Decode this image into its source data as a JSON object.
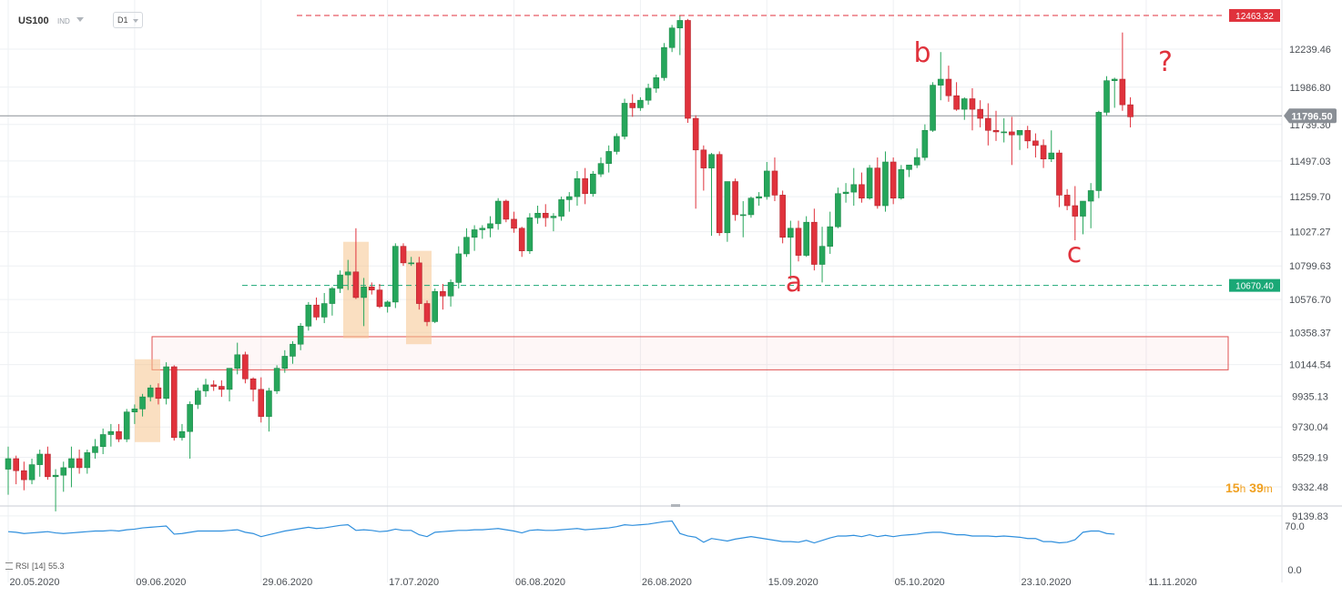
{
  "header": {
    "symbol": "US100",
    "market": "IND",
    "timeframe": "D1"
  },
  "timer": {
    "h": "15",
    "h_unit": "h",
    "m": "39",
    "m_unit": "m"
  },
  "rsi": {
    "label": "RSI",
    "period": "[14]",
    "value": "55.3"
  },
  "colors": {
    "up": "#26a65b",
    "down": "#e0323c",
    "rsi": "#2f8fdd",
    "highlight": "#f6c58e",
    "zone": "#e05050"
  },
  "chart_data": {
    "type": "candlestick",
    "symbol": "US100",
    "timeframe": "D1",
    "ylim": [
      9050,
      12600
    ],
    "y_ticks": [
      "12239.46",
      "11986.80",
      "11739.30",
      "11497.03",
      "11259.70",
      "11027.27",
      "10799.63",
      "10576.70",
      "10358.37",
      "10144.54",
      "9935.13",
      "9730.04",
      "9529.19",
      "9332.48",
      "9139.83"
    ],
    "x_ticks": [
      "20.05.2020",
      "09.06.2020",
      "29.06.2020",
      "17.07.2020",
      "06.08.2020",
      "26.08.2020",
      "15.09.2020",
      "05.10.2020",
      "23.10.2020",
      "11.11.2020"
    ],
    "current_price": "11796.50",
    "levels": [
      {
        "label": "12463.32",
        "value": 12463.32,
        "style": "dashed",
        "color": "#e0323c"
      },
      {
        "label": "10670.40",
        "value": 10670.4,
        "style": "dashed",
        "color": "#1aa876"
      }
    ],
    "annotations": [
      "a",
      "b",
      "c",
      "?"
    ],
    "rsi_ticks": [
      "70.0",
      "0.0"
    ],
    "candles": [
      [
        9450,
        9600,
        9280,
        9520
      ],
      [
        9520,
        9540,
        9350,
        9440
      ],
      [
        9440,
        9500,
        9310,
        9380
      ],
      [
        9380,
        9520,
        9350,
        9480
      ],
      [
        9480,
        9580,
        9400,
        9550
      ],
      [
        9550,
        9600,
        9380,
        9400
      ],
      [
        9400,
        9450,
        9170,
        9410
      ],
      [
        9410,
        9500,
        9300,
        9460
      ],
      [
        9460,
        9600,
        9330,
        9520
      ],
      [
        9520,
        9580,
        9420,
        9460
      ],
      [
        9460,
        9580,
        9420,
        9560
      ],
      [
        9560,
        9650,
        9520,
        9600
      ],
      [
        9600,
        9720,
        9550,
        9680
      ],
      [
        9680,
        9750,
        9600,
        9700
      ],
      [
        9700,
        9750,
        9630,
        9650
      ],
      [
        9650,
        9850,
        9630,
        9830
      ],
      [
        9830,
        9880,
        9750,
        9850
      ],
      [
        9850,
        9950,
        9800,
        9930
      ],
      [
        9930,
        10010,
        9900,
        9990
      ],
      [
        9990,
        10020,
        9880,
        9920
      ],
      [
        9920,
        10160,
        9880,
        10130
      ],
      [
        10130,
        10140,
        9640,
        9660
      ],
      [
        9660,
        9750,
        9640,
        9700
      ],
      [
        9700,
        9900,
        9520,
        9880
      ],
      [
        9880,
        9990,
        9850,
        9970
      ],
      [
        9970,
        10050,
        9930,
        10010
      ],
      [
        10010,
        10040,
        9970,
        10000
      ],
      [
        10000,
        10040,
        9930,
        9980
      ],
      [
        9980,
        10120,
        9900,
        10120
      ],
      [
        10120,
        10290,
        10080,
        10210
      ],
      [
        10210,
        10230,
        10020,
        10050
      ],
      [
        10050,
        10060,
        9900,
        9980
      ],
      [
        9980,
        10060,
        9760,
        9800
      ],
      [
        9800,
        9990,
        9700,
        9970
      ],
      [
        9970,
        10140,
        9950,
        10120
      ],
      [
        10120,
        10240,
        10090,
        10200
      ],
      [
        10200,
        10300,
        10150,
        10280
      ],
      [
        10280,
        10420,
        10240,
        10400
      ],
      [
        10400,
        10560,
        10370,
        10540
      ],
      [
        10540,
        10590,
        10440,
        10460
      ],
      [
        10460,
        10620,
        10420,
        10550
      ],
      [
        10550,
        10660,
        10470,
        10650
      ],
      [
        10650,
        10770,
        10620,
        10740
      ],
      [
        10740,
        10840,
        10640,
        10760
      ],
      [
        10760,
        11050,
        10580,
        10590
      ],
      [
        10590,
        10720,
        10400,
        10660
      ],
      [
        10660,
        10690,
        10610,
        10640
      ],
      [
        10640,
        10680,
        10520,
        10530
      ],
      [
        10530,
        10570,
        10490,
        10560
      ],
      [
        10560,
        10950,
        10520,
        10930
      ],
      [
        10930,
        10950,
        10800,
        10820
      ],
      [
        10820,
        10860,
        10800,
        10820
      ],
      [
        10820,
        10860,
        10510,
        10550
      ],
      [
        10550,
        10570,
        10400,
        10430
      ],
      [
        10430,
        10650,
        10420,
        10630
      ],
      [
        10630,
        10680,
        10510,
        10600
      ],
      [
        10600,
        10710,
        10530,
        10690
      ],
      [
        10690,
        10930,
        10650,
        10880
      ],
      [
        10880,
        11050,
        10860,
        10990
      ],
      [
        10990,
        11070,
        10900,
        11040
      ],
      [
        11040,
        11070,
        10980,
        11050
      ],
      [
        11050,
        11130,
        10990,
        11080
      ],
      [
        11080,
        11250,
        11040,
        11230
      ],
      [
        11230,
        11240,
        11090,
        11110
      ],
      [
        11110,
        11160,
        11020,
        11050
      ],
      [
        11050,
        11060,
        10860,
        10900
      ],
      [
        10900,
        11150,
        10880,
        11120
      ],
      [
        11120,
        11200,
        11080,
        11150
      ],
      [
        11150,
        11210,
        11060,
        11120
      ],
      [
        11120,
        11150,
        11030,
        11130
      ],
      [
        11130,
        11260,
        11100,
        11240
      ],
      [
        11240,
        11290,
        11160,
        11260
      ],
      [
        11260,
        11430,
        11200,
        11380
      ],
      [
        11380,
        11450,
        11210,
        11280
      ],
      [
        11280,
        11430,
        11260,
        11410
      ],
      [
        11410,
        11520,
        11390,
        11480
      ],
      [
        11480,
        11600,
        11420,
        11560
      ],
      [
        11560,
        11680,
        11540,
        11660
      ],
      [
        11660,
        11910,
        11640,
        11880
      ],
      [
        11880,
        11940,
        11790,
        11850
      ],
      [
        11850,
        11920,
        11830,
        11900
      ],
      [
        11900,
        12010,
        11870,
        11980
      ],
      [
        11980,
        12070,
        11950,
        12050
      ],
      [
        12050,
        12280,
        12030,
        12250
      ],
      [
        12250,
        12400,
        12220,
        12380
      ],
      [
        12380,
        12460,
        12200,
        12430
      ],
      [
        12430,
        12440,
        11750,
        11780
      ],
      [
        11780,
        11800,
        11180,
        11570
      ],
      [
        11570,
        11600,
        11300,
        11450
      ],
      [
        11450,
        11550,
        11000,
        11540
      ],
      [
        11540,
        11560,
        11000,
        11020
      ],
      [
        11020,
        11350,
        10960,
        11360
      ],
      [
        11360,
        11380,
        11100,
        11140
      ],
      [
        11140,
        11230,
        10990,
        11140
      ],
      [
        11140,
        11260,
        11120,
        11250
      ],
      [
        11250,
        11290,
        11200,
        11260
      ],
      [
        11260,
        11490,
        11240,
        11430
      ],
      [
        11430,
        11520,
        11230,
        11270
      ],
      [
        11270,
        11300,
        10950,
        10990
      ],
      [
        10990,
        11100,
        10710,
        11050
      ],
      [
        11050,
        11100,
        10830,
        10870
      ],
      [
        10870,
        11130,
        10860,
        11090
      ],
      [
        11090,
        11180,
        10770,
        10810
      ],
      [
        10810,
        11060,
        10690,
        10930
      ],
      [
        10930,
        11160,
        10880,
        11060
      ],
      [
        11060,
        11320,
        11050,
        11280
      ],
      [
        11280,
        11350,
        11220,
        11290
      ],
      [
        11290,
        11450,
        11200,
        11340
      ],
      [
        11340,
        11420,
        11220,
        11250
      ],
      [
        11250,
        11470,
        11240,
        11450
      ],
      [
        11450,
        11520,
        11180,
        11200
      ],
      [
        11200,
        11560,
        11160,
        11490
      ],
      [
        11490,
        11520,
        11210,
        11250
      ],
      [
        11250,
        11470,
        11240,
        11440
      ],
      [
        11440,
        11470,
        11390,
        11470
      ],
      [
        11470,
        11580,
        11450,
        11520
      ],
      [
        11520,
        11740,
        11500,
        11700
      ],
      [
        11700,
        12020,
        11690,
        12000
      ],
      [
        12000,
        12220,
        11900,
        12040
      ],
      [
        12040,
        12130,
        11890,
        11930
      ],
      [
        11930,
        12020,
        11830,
        11840
      ],
      [
        11840,
        11920,
        11770,
        11910
      ],
      [
        11910,
        11980,
        11700,
        11840
      ],
      [
        11840,
        11900,
        11720,
        11780
      ],
      [
        11780,
        11880,
        11600,
        11700
      ],
      [
        11700,
        11830,
        11630,
        11690
      ],
      [
        11690,
        11780,
        11620,
        11690
      ],
      [
        11690,
        11790,
        11470,
        11670
      ],
      [
        11670,
        11700,
        11570,
        11700
      ],
      [
        11700,
        11730,
        11580,
        11630
      ],
      [
        11630,
        11680,
        11520,
        11600
      ],
      [
        11600,
        11640,
        11450,
        11510
      ],
      [
        11510,
        11700,
        11490,
        11550
      ],
      [
        11550,
        11570,
        11190,
        11270
      ],
      [
        11270,
        11310,
        11170,
        11200
      ],
      [
        11200,
        11330,
        10970,
        11130
      ],
      [
        11130,
        11230,
        11010,
        11230
      ],
      [
        11230,
        11350,
        11050,
        11300
      ],
      [
        11300,
        11830,
        11250,
        11820
      ],
      [
        11820,
        12060,
        11800,
        12030
      ],
      [
        12030,
        12050,
        11850,
        12040
      ],
      [
        12040,
        12350,
        11830,
        11870
      ],
      [
        11870,
        11920,
        11720,
        11790
      ]
    ],
    "rsi": [
      61,
      60,
      58,
      59,
      60,
      61,
      59,
      58,
      59,
      60,
      61,
      62,
      62,
      63,
      62,
      64,
      65,
      67,
      68,
      69,
      70,
      57,
      58,
      60,
      62,
      62,
      62,
      62,
      63,
      64,
      60,
      58,
      53,
      56,
      59,
      62,
      64,
      66,
      68,
      66,
      67,
      69,
      71,
      72,
      63,
      64,
      63,
      61,
      62,
      65,
      63,
      63,
      56,
      53,
      60,
      61,
      62,
      63,
      63,
      64,
      64,
      65,
      66,
      64,
      62,
      59,
      63,
      64,
      63,
      63,
      64,
      65,
      66,
      64,
      65,
      66,
      67,
      69,
      72,
      71,
      72,
      73,
      75,
      77,
      78,
      58,
      54,
      52,
      44,
      50,
      48,
      46,
      49,
      51,
      53,
      51,
      49,
      47,
      45,
      45,
      44,
      47,
      43,
      47,
      51,
      54,
      54,
      55,
      53,
      56,
      53,
      55,
      53,
      55,
      56,
      57,
      59,
      60,
      60,
      58,
      56,
      56,
      54,
      54,
      54,
      53,
      54,
      53,
      52,
      50,
      50,
      45,
      45,
      43,
      44,
      48,
      60,
      62,
      62,
      58,
      57
    ]
  }
}
